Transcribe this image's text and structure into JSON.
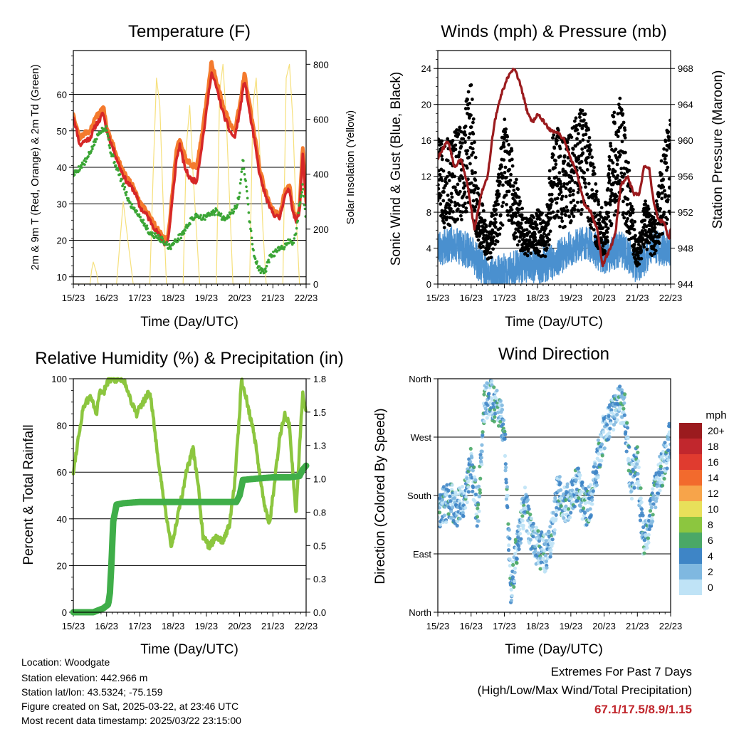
{
  "x_ticks": [
    "15/23",
    "16/23",
    "17/23",
    "18/23",
    "19/23",
    "20/23",
    "21/23",
    "22/23"
  ],
  "x_label": "Time (Day/UTC)",
  "chart_data": [
    {
      "id": "temperature",
      "type": "line",
      "title": "Temperature (F)",
      "xlabel": "Time (Day/UTC)",
      "ylabel": "2m & 9m T (Red, Orange) & 2m Td (Green)",
      "ylabel_right": "Solar Insolation (Yellow)",
      "x_unit": "days since 15/23 UTC",
      "xlim": [
        0,
        7
      ],
      "ylim": [
        8,
        72
      ],
      "y_ticks": [
        10,
        20,
        30,
        40,
        50,
        60
      ],
      "ylim_right": [
        0,
        850
      ],
      "y_ticks_right": [
        0,
        200,
        400,
        600,
        800
      ],
      "series": [
        {
          "name": "2m T",
          "color": "#d62728",
          "x": [
            0,
            0.1,
            0.2,
            0.3,
            0.5,
            0.7,
            0.8,
            0.9,
            1.0,
            1.2,
            1.4,
            1.6,
            1.8,
            1.9,
            2.0,
            2.2,
            2.4,
            2.6,
            2.75,
            2.85,
            3.0,
            3.1,
            3.2,
            3.35,
            3.5,
            3.7,
            3.85,
            4.0,
            4.15,
            4.3,
            4.5,
            4.7,
            4.85,
            5.0,
            5.15,
            5.3,
            5.45,
            5.6,
            5.75,
            5.9,
            6.05,
            6.2,
            6.35,
            6.5,
            6.6,
            6.7,
            6.8,
            6.9,
            7.0
          ],
          "values": [
            54,
            50,
            46,
            47,
            48,
            52,
            53,
            55,
            50,
            45,
            40,
            36,
            34,
            32,
            29,
            27,
            24,
            21,
            19,
            20,
            33,
            42,
            46,
            40,
            37,
            36,
            45,
            55,
            66,
            62,
            55,
            50,
            48,
            55,
            64,
            55,
            47,
            38,
            33,
            29,
            27,
            26,
            32,
            34,
            28,
            25,
            28,
            44,
            30
          ]
        },
        {
          "name": "9m T",
          "color": "#f47a2d",
          "x": [
            0,
            0.1,
            0.2,
            0.3,
            0.5,
            0.7,
            0.8,
            0.9,
            1.0,
            1.2,
            1.4,
            1.6,
            1.8,
            1.9,
            2.0,
            2.2,
            2.4,
            2.6,
            2.75,
            2.85,
            3.0,
            3.1,
            3.2,
            3.35,
            3.5,
            3.7,
            3.85,
            4.0,
            4.15,
            4.3,
            4.5,
            4.7,
            4.85,
            5.0,
            5.15,
            5.3,
            5.45,
            5.6,
            5.75,
            5.9,
            6.05,
            6.2,
            6.35,
            6.5,
            6.6,
            6.7,
            6.8,
            6.9,
            7.0
          ],
          "values": [
            55,
            51,
            48,
            49,
            50,
            54,
            55,
            57,
            51,
            46,
            41,
            37,
            35,
            33,
            30,
            28,
            25,
            22,
            20,
            21,
            35,
            45,
            48,
            43,
            41,
            40,
            48,
            58,
            69,
            64,
            57,
            52,
            50,
            57,
            66,
            57,
            49,
            40,
            34,
            30,
            28,
            27,
            33,
            35,
            29,
            26,
            29,
            46,
            31
          ]
        },
        {
          "name": "2m Td",
          "color": "#3aa535",
          "x": [
            0,
            0.2,
            0.4,
            0.6,
            0.8,
            1.0,
            1.1,
            1.3,
            1.5,
            1.7,
            1.9,
            2.1,
            2.3,
            2.5,
            2.7,
            2.9,
            3.1,
            3.3,
            3.5,
            3.7,
            3.9,
            4.1,
            4.3,
            4.5,
            4.7,
            4.9,
            5.0,
            5.1,
            5.2,
            5.3,
            5.45,
            5.6,
            5.75,
            5.9,
            6.1,
            6.3,
            6.5,
            6.6,
            6.7,
            6.8,
            6.9,
            7.0
          ],
          "values": [
            38,
            40,
            42,
            46,
            50,
            51,
            45,
            40,
            35,
            30,
            28,
            25,
            22,
            21,
            20,
            18,
            20,
            22,
            25,
            27,
            26,
            27,
            28,
            26,
            27,
            29,
            33,
            42,
            35,
            25,
            15,
            12,
            11,
            15,
            17,
            18,
            20,
            19,
            22,
            30,
            35,
            25
          ]
        },
        {
          "name": "Solar Insolation",
          "color": "#f5dd6e",
          "axis": "right",
          "x": [
            0,
            0.5,
            0.55,
            0.6,
            0.65,
            0.7,
            0.75,
            1.3,
            1.4,
            1.5,
            1.6,
            1.7,
            1.8,
            2.3,
            2.4,
            2.5,
            2.6,
            2.7,
            2.8,
            3.3,
            3.4,
            3.5,
            3.6,
            3.7,
            3.8,
            4.3,
            4.4,
            4.5,
            4.6,
            4.7,
            4.8,
            5.3,
            5.4,
            5.5,
            5.6,
            5.7,
            5.8,
            6.3,
            6.4,
            6.5,
            6.6,
            6.7,
            6.8,
            7.0
          ],
          "values": [
            0,
            0,
            50,
            80,
            60,
            40,
            0,
            0,
            150,
            300,
            200,
            100,
            0,
            0,
            400,
            750,
            650,
            300,
            0,
            0,
            500,
            650,
            400,
            200,
            0,
            0,
            700,
            800,
            600,
            300,
            0,
            0,
            650,
            750,
            500,
            200,
            0,
            0,
            750,
            800,
            600,
            250,
            0,
            0
          ]
        }
      ]
    },
    {
      "id": "winds",
      "type": "scatter",
      "title": "Winds (mph) & Pressure (mb)",
      "xlabel": "Time (Day/UTC)",
      "ylabel": "Sonic Wind & Gust (Blue, Black)",
      "ylabel_right": "Station Pressure (Maroon)",
      "x_unit": "days since 15/23 UTC",
      "xlim": [
        0,
        7
      ],
      "ylim": [
        0,
        26
      ],
      "y_ticks": [
        0,
        4,
        8,
        12,
        16,
        20,
        24
      ],
      "ylim_right": [
        944,
        970
      ],
      "y_ticks_right": [
        944,
        948,
        952,
        956,
        960,
        964,
        968
      ],
      "series": [
        {
          "name": "Sonic Wind",
          "color": "#4a90cf",
          "x": [
            0,
            0.5,
            1.0,
            1.5,
            2.0,
            2.5,
            3.0,
            3.5,
            4.0,
            4.5,
            5.0,
            5.5,
            6.0,
            6.5,
            7.0
          ],
          "values": [
            4,
            4.5,
            3.5,
            1,
            1.5,
            2,
            2,
            2.5,
            4,
            4.5,
            3,
            4,
            2,
            4,
            4
          ]
        },
        {
          "name": "Gust",
          "color": "#000000",
          "x": [
            0,
            0.25,
            0.5,
            0.75,
            1.0,
            1.2,
            1.5,
            1.75,
            2.0,
            2.25,
            2.5,
            2.75,
            3.0,
            3.25,
            3.5,
            3.75,
            4.0,
            4.25,
            4.5,
            4.75,
            5.0,
            5.25,
            5.5,
            5.75,
            6.0,
            6.25,
            6.5,
            6.75,
            7.0
          ],
          "values": [
            12,
            11,
            12,
            13,
            16,
            8,
            4,
            7,
            13,
            10,
            6,
            5,
            6,
            5,
            13,
            11,
            12,
            14,
            13,
            8,
            5,
            13,
            15,
            9,
            3,
            7,
            5,
            10,
            14
          ]
        },
        {
          "name": "Station Pressure",
          "color": "#9b1b1e",
          "axis": "right",
          "x": [
            0,
            0.15,
            0.3,
            0.5,
            0.7,
            0.9,
            1.1,
            1.3,
            1.5,
            1.7,
            1.9,
            2.1,
            2.3,
            2.5,
            2.7,
            2.85,
            3.0,
            3.2,
            3.4,
            3.6,
            3.8,
            4.0,
            4.2,
            4.4,
            4.6,
            4.8,
            4.95,
            5.05,
            5.2,
            5.35,
            5.5,
            5.7,
            5.9,
            6.05,
            6.2,
            6.35,
            6.5,
            6.65,
            6.8,
            6.95,
            7.0
          ],
          "values": [
            958,
            959,
            960,
            957,
            958,
            955,
            950,
            954,
            956,
            962,
            965,
            967,
            968,
            966,
            963,
            962,
            963,
            962,
            961,
            961,
            960,
            958,
            956,
            953,
            952,
            950,
            946,
            947,
            948,
            950,
            955,
            956,
            954,
            954,
            957,
            957,
            953,
            951,
            951,
            949,
            950
          ]
        }
      ]
    },
    {
      "id": "humidity",
      "type": "line",
      "title": "Relative Humidity (%) & Precipitation (in)",
      "xlabel": "Time (Day/UTC)",
      "ylabel": "Percent & Total Rainfall",
      "x_unit": "days since 15/23 UTC",
      "xlim": [
        0,
        7
      ],
      "ylim": [
        0,
        100
      ],
      "y_ticks": [
        0,
        20,
        40,
        60,
        80,
        100
      ],
      "ylim_right": [
        0,
        1.8
      ],
      "y_ticks_right": [
        "0.0",
        "0.3",
        "0.5",
        "0.8",
        "1.0",
        "1.3",
        "1.5",
        "1.8"
      ],
      "series": [
        {
          "name": "Relative Humidity",
          "color": "#8cc63f",
          "x": [
            0,
            0.1,
            0.3,
            0.5,
            0.6,
            0.7,
            0.8,
            0.9,
            1.0,
            1.1,
            1.3,
            1.5,
            1.7,
            1.9,
            2.1,
            2.3,
            2.6,
            2.8,
            2.95,
            3.05,
            3.2,
            3.4,
            3.6,
            3.75,
            3.9,
            4.1,
            4.3,
            4.5,
            4.7,
            4.85,
            5.0,
            5.05,
            5.15,
            5.3,
            5.45,
            5.6,
            5.75,
            5.9,
            6.05,
            6.2,
            6.35,
            6.5,
            6.6,
            6.7,
            6.8,
            6.9,
            7.0
          ],
          "values": [
            60,
            70,
            88,
            92,
            90,
            85,
            95,
            93,
            98,
            100,
            100,
            100,
            92,
            85,
            90,
            95,
            60,
            40,
            28,
            35,
            45,
            60,
            70,
            55,
            32,
            28,
            33,
            30,
            38,
            55,
            85,
            100,
            95,
            85,
            75,
            60,
            45,
            38,
            55,
            75,
            85,
            80,
            60,
            42,
            70,
            95,
            85
          ]
        },
        {
          "name": "Total Rainfall",
          "color": "#3fae49",
          "axis": "right",
          "x": [
            0,
            0.3,
            0.6,
            0.9,
            1.05,
            1.1,
            1.15,
            1.2,
            1.3,
            1.5,
            2.0,
            2.5,
            3.0,
            3.5,
            4.0,
            4.5,
            4.9,
            5.0,
            5.1,
            5.5,
            6.0,
            6.5,
            6.8,
            6.9,
            7.0
          ],
          "values": [
            0,
            0,
            0,
            0.03,
            0.06,
            0.15,
            0.4,
            0.7,
            0.83,
            0.84,
            0.85,
            0.85,
            0.85,
            0.85,
            0.85,
            0.85,
            0.85,
            0.9,
            1.02,
            1.03,
            1.04,
            1.04,
            1.05,
            1.1,
            1.13
          ]
        }
      ]
    },
    {
      "id": "direction",
      "type": "scatter",
      "title": "Wind Direction",
      "xlabel": "Time (Day/UTC)",
      "ylabel": "Direction (Colored By Speed)",
      "x_unit": "days since 15/23 UTC",
      "xlim": [
        0,
        7
      ],
      "ylim": [
        0,
        360
      ],
      "y_ticks": [
        {
          "value": 0,
          "label": "North"
        },
        {
          "value": 90,
          "label": "East"
        },
        {
          "value": 180,
          "label": "South"
        },
        {
          "value": 270,
          "label": "West"
        },
        {
          "value": 360,
          "label": "North"
        }
      ],
      "series": [
        {
          "name": "Direction",
          "x": [
            0,
            0.2,
            0.4,
            0.6,
            0.8,
            1.0,
            1.2,
            1.4,
            1.6,
            1.8,
            2.0,
            2.2,
            2.4,
            2.6,
            2.8,
            3.0,
            3.2,
            3.4,
            3.6,
            3.8,
            4.0,
            4.2,
            4.4,
            4.6,
            4.8,
            5.0,
            5.2,
            5.4,
            5.6,
            5.8,
            6.0,
            6.2,
            6.4,
            6.6,
            6.8,
            7.0
          ],
          "values": [
            160,
            165,
            170,
            160,
            170,
            230,
            150,
            320,
            330,
            310,
            280,
            40,
            100,
            170,
            120,
            100,
            90,
            110,
            190,
            170,
            170,
            200,
            160,
            170,
            230,
            280,
            300,
            320,
            320,
            200,
            230,
            100,
            150,
            200,
            230,
            270
          ]
        }
      ],
      "legend": {
        "title": "mph",
        "placement": "right",
        "labels": [
          "20+",
          "18",
          "16",
          "14",
          "12",
          "10",
          "8",
          "6",
          "4",
          "2",
          "0"
        ],
        "colors": [
          "#9b1b1e",
          "#c1272d",
          "#e03b2f",
          "#f26a2d",
          "#f7a44a",
          "#e8e05a",
          "#8cc63f",
          "#4aa867",
          "#3e85c6",
          "#7fb8e0",
          "#bfe3f6"
        ]
      }
    }
  ],
  "info": {
    "location": "Location: Woodgate",
    "elevation": "Station elevation: 442.966 m",
    "latlon": "Station lat/lon: 43.5324; -75.159",
    "created": "Figure created on Sat, 2025-03-22, at 23:46 UTC",
    "recent": "Most recent data timestamp: 2025/03/22 23:15:00"
  },
  "extremes": {
    "title": "Extremes For Past 7 Days",
    "subtitle": "(High/Low/Max Wind/Total Precipitation)",
    "value": "67.1/17.5/8.9/1.15"
  }
}
